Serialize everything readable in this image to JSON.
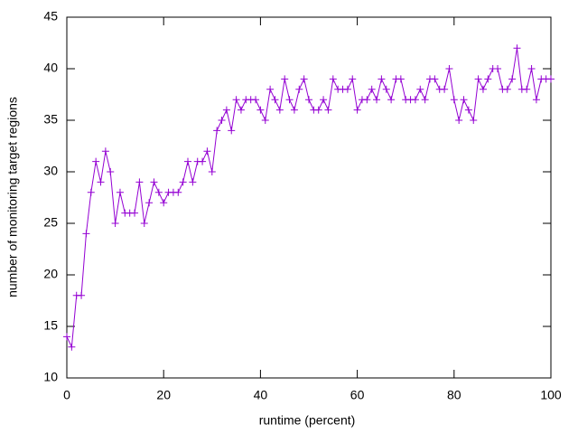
{
  "chart_data": {
    "type": "line",
    "xlabel": "runtime (percent)",
    "ylabel": "number of monitoring target regions",
    "x": [
      0,
      1,
      2,
      3,
      4,
      5,
      6,
      7,
      8,
      9,
      10,
      11,
      12,
      13,
      14,
      15,
      16,
      17,
      18,
      19,
      20,
      21,
      22,
      23,
      24,
      25,
      26,
      27,
      28,
      29,
      30,
      31,
      32,
      33,
      34,
      35,
      36,
      37,
      38,
      39,
      40,
      41,
      42,
      43,
      44,
      45,
      46,
      47,
      48,
      49,
      50,
      51,
      52,
      53,
      54,
      55,
      56,
      57,
      58,
      59,
      60,
      61,
      62,
      63,
      64,
      65,
      66,
      67,
      68,
      69,
      70,
      71,
      72,
      73,
      74,
      75,
      76,
      77,
      78,
      79,
      80,
      81,
      82,
      83,
      84,
      85,
      86,
      87,
      88,
      89,
      90,
      91,
      92,
      93,
      94,
      95,
      96,
      97,
      98,
      99,
      100
    ],
    "series": [
      {
        "color": "#9400d3",
        "values": [
          14,
          13,
          18,
          18,
          24,
          28,
          31,
          29,
          32,
          30,
          25,
          28,
          26,
          26,
          26,
          29,
          25,
          27,
          29,
          28,
          27,
          28,
          28,
          28,
          29,
          31,
          29,
          31,
          31,
          32,
          30,
          34,
          35,
          36,
          34,
          37,
          36,
          37,
          37,
          37,
          36,
          35,
          38,
          37,
          36,
          39,
          37,
          36,
          38,
          39,
          37,
          36,
          36,
          37,
          36,
          39,
          38,
          38,
          38,
          39,
          36,
          37,
          37,
          38,
          37,
          39,
          38,
          37,
          39,
          39,
          37,
          37,
          37,
          38,
          37,
          39,
          39,
          38,
          38,
          40,
          37,
          35,
          37,
          36,
          35,
          39,
          38,
          39,
          40,
          40,
          38,
          38,
          39,
          42,
          38,
          38,
          40,
          37,
          39,
          39,
          39
        ]
      }
    ],
    "xlim": [
      0,
      100
    ],
    "xticks": [
      0,
      20,
      40,
      60,
      80,
      100
    ],
    "ylim": [
      10,
      45
    ],
    "yticks": [
      10,
      15,
      20,
      25,
      30,
      35,
      40,
      45
    ],
    "grid": false
  }
}
